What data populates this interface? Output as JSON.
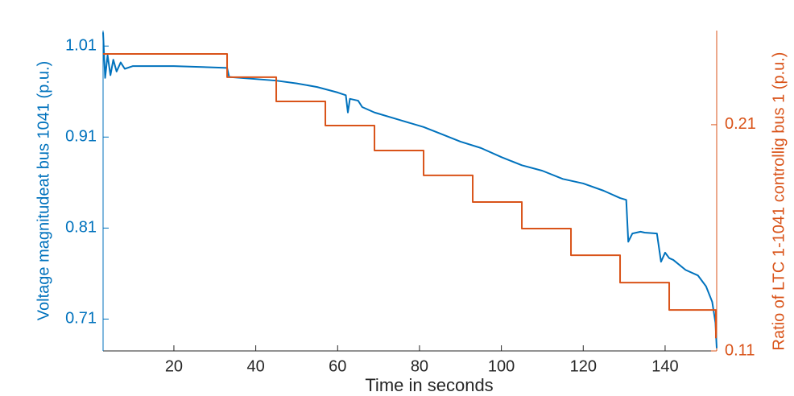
{
  "chart_data": {
    "type": "line",
    "x_label": "Time in seconds",
    "y_label": "Voltage magnitudeat bus 1041 (p.u.)",
    "y2_label": "Ratio of LTC 1-1041 controllig bus 1 (p.u.)",
    "xlim": [
      2.7,
      152.6
    ],
    "xticks": [
      20,
      40,
      60,
      80,
      100,
      120,
      140
    ],
    "ylim": [
      0.675,
      1.027
    ],
    "yticks": [
      0.71,
      0.81,
      0.91,
      1.01
    ],
    "y2lim": [
      0.11,
      0.2516
    ],
    "y2ticks": [
      0.11,
      0.21
    ],
    "series": [
      {
        "name": "Voltage magnitude bus 1041",
        "color": "#0072BD",
        "x": [
          2.7,
          3.2,
          3.8,
          4.5,
          5.2,
          6,
          7,
          8,
          10,
          20,
          33,
          33.5,
          45,
          50,
          55,
          60,
          62,
          62.5,
          63,
          65,
          66,
          69,
          75,
          81,
          85,
          90,
          95,
          100,
          105,
          110,
          115,
          120,
          125,
          129,
          130.5,
          131,
          132,
          134,
          135,
          138,
          139,
          140,
          141,
          142,
          145,
          148,
          150,
          151.5,
          152.3,
          152.6
        ],
        "values": [
          1.025,
          0.975,
          1.0,
          0.978,
          0.995,
          0.982,
          0.992,
          0.985,
          0.988,
          0.988,
          0.986,
          0.976,
          0.972,
          0.969,
          0.965,
          0.959,
          0.956,
          0.937,
          0.952,
          0.95,
          0.943,
          0.937,
          0.929,
          0.921,
          0.914,
          0.905,
          0.898,
          0.888,
          0.879,
          0.873,
          0.864,
          0.859,
          0.851,
          0.843,
          0.841,
          0.795,
          0.804,
          0.806,
          0.805,
          0.804,
          0.773,
          0.783,
          0.777,
          0.775,
          0.764,
          0.758,
          0.746,
          0.729,
          0.706,
          0.678
        ]
      },
      {
        "name": "Ratio of LTC 1-1041",
        "color": "#D95319",
        "axis": "y2",
        "x": [
          2.7,
          33,
          33,
          45,
          45,
          57,
          57,
          69,
          69,
          81,
          81,
          93,
          93,
          105,
          105,
          117,
          117,
          129,
          129,
          141,
          141,
          152.4,
          152.4
        ],
        "values": [
          0.2413,
          0.2413,
          0.231,
          0.231,
          0.2203,
          0.2203,
          0.2096,
          0.2096,
          0.1986,
          0.1986,
          0.1876,
          0.1876,
          0.1758,
          0.1758,
          0.1641,
          0.1641,
          0.1523,
          0.1523,
          0.1402,
          0.1402,
          0.1281,
          0.1281,
          0.1156
        ]
      }
    ]
  }
}
